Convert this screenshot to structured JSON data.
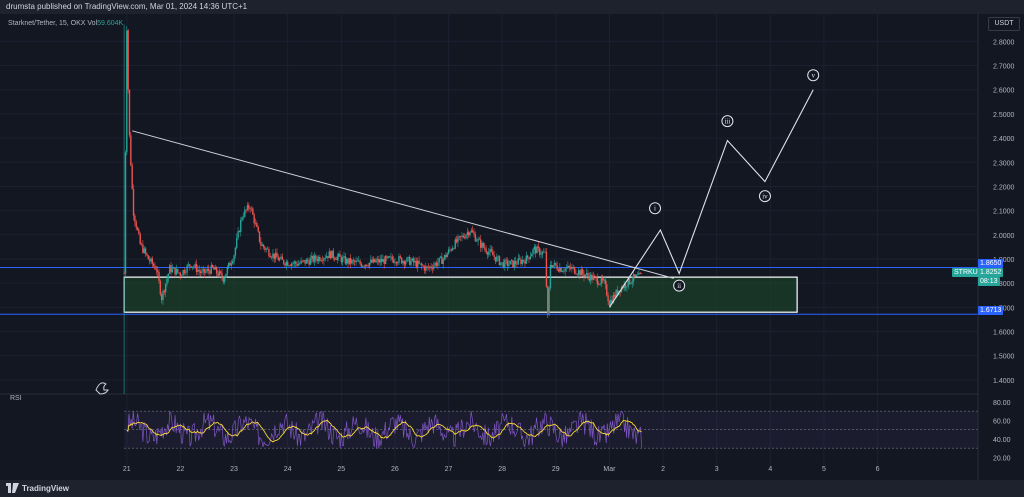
{
  "header": {
    "published_text": "drumsta published on TradingView.com, Mar 01, 2024 14:36 UTC+1"
  },
  "legend": {
    "symbol": "Starknet/Tether, 15, OKX",
    "vol_label": "Vol",
    "vol_value": "59.604K"
  },
  "currency": "USDT",
  "price_axis": {
    "ticks": [
      "2.8000",
      "2.7000",
      "2.6000",
      "2.5000",
      "2.4000",
      "2.3000",
      "2.2000",
      "2.1000",
      "2.0000",
      "1.9000",
      "1.8000",
      "1.7000",
      "1.6000",
      "1.5000",
      "1.4000"
    ]
  },
  "tags": {
    "upper_line": "1.8650",
    "lower_line": "1.6713",
    "symbol": "STRKUSDT",
    "last_price": "1.8252",
    "countdown": "08:13"
  },
  "time_axis": {
    "ticks": [
      "21",
      "22",
      "23",
      "24",
      "25",
      "26",
      "27",
      "28",
      "29",
      "Mar",
      "2",
      "3",
      "4",
      "5",
      "6"
    ]
  },
  "rsi": {
    "label": "RSI",
    "ticks": [
      "80.00",
      "60.00",
      "40.00",
      "20.00"
    ]
  },
  "wave_labels": [
    "i",
    "ii",
    "iii",
    "iv",
    "v"
  ],
  "footer": {
    "brand": "TradingView"
  },
  "colors": {
    "up": "#26a69a",
    "down": "#ef5350",
    "rsi_line": "#7e57c2",
    "rsi_ma": "#fdd835",
    "level_line": "#2962ff",
    "zone": "#1e4d2b",
    "bg": "#131722"
  },
  "chart_data": {
    "type": "candlestick",
    "ylim": [
      1.35,
      2.88
    ],
    "price_path": [
      [
        20.95,
        1.84
      ],
      [
        21.0,
        2.86
      ],
      [
        21.04,
        2.45
      ],
      [
        21.12,
        2.1
      ],
      [
        21.25,
        1.96
      ],
      [
        21.4,
        1.9
      ],
      [
        21.55,
        1.86
      ],
      [
        21.65,
        1.74
      ],
      [
        21.8,
        1.86
      ],
      [
        22.0,
        1.84
      ],
      [
        22.2,
        1.88
      ],
      [
        22.4,
        1.84
      ],
      [
        22.6,
        1.86
      ],
      [
        22.8,
        1.82
      ],
      [
        23.0,
        1.92
      ],
      [
        23.15,
        2.08
      ],
      [
        23.3,
        2.12
      ],
      [
        23.5,
        1.96
      ],
      [
        23.7,
        1.92
      ],
      [
        23.9,
        1.89
      ],
      [
        24.2,
        1.88
      ],
      [
        24.5,
        1.9
      ],
      [
        24.8,
        1.92
      ],
      [
        25.1,
        1.89
      ],
      [
        25.4,
        1.88
      ],
      [
        25.7,
        1.89
      ],
      [
        26.0,
        1.9
      ],
      [
        26.3,
        1.89
      ],
      [
        26.6,
        1.86
      ],
      [
        26.9,
        1.9
      ],
      [
        27.1,
        1.96
      ],
      [
        27.4,
        2.02
      ],
      [
        27.6,
        1.96
      ],
      [
        27.8,
        1.92
      ],
      [
        28.0,
        1.88
      ],
      [
        28.2,
        1.88
      ],
      [
        28.45,
        1.9
      ],
      [
        28.6,
        1.94
      ],
      [
        28.8,
        1.92
      ],
      [
        28.85,
        1.66
      ],
      [
        28.9,
        1.88
      ],
      [
        29.1,
        1.86
      ],
      [
        29.3,
        1.86
      ],
      [
        29.5,
        1.84
      ],
      [
        29.7,
        1.82
      ],
      [
        29.9,
        1.8
      ],
      [
        30.0,
        1.72
      ],
      [
        30.2,
        1.78
      ],
      [
        30.45,
        1.82
      ],
      [
        30.6,
        1.83
      ]
    ],
    "trendline": [
      [
        21.1,
        2.43
      ],
      [
        31.2,
        1.82
      ]
    ],
    "hlines": [
      1.865,
      1.6713
    ],
    "zone": {
      "x": [
        20.95,
        33.5
      ],
      "y": [
        1.68,
        1.825
      ]
    },
    "wave_projection": [
      [
        30.0,
        1.7
      ],
      [
        30.95,
        2.02
      ],
      [
        31.3,
        1.84
      ],
      [
        32.2,
        2.39
      ],
      [
        32.9,
        2.22
      ],
      [
        33.8,
        2.6
      ]
    ],
    "wave_label_points": [
      [
        30.85,
        2.11
      ],
      [
        31.3,
        1.79
      ],
      [
        32.2,
        2.47
      ],
      [
        32.9,
        2.16
      ],
      [
        33.8,
        2.66
      ]
    ],
    "rsi_ylim": [
      15,
      80
    ],
    "rsi_band": [
      30,
      70
    ]
  }
}
